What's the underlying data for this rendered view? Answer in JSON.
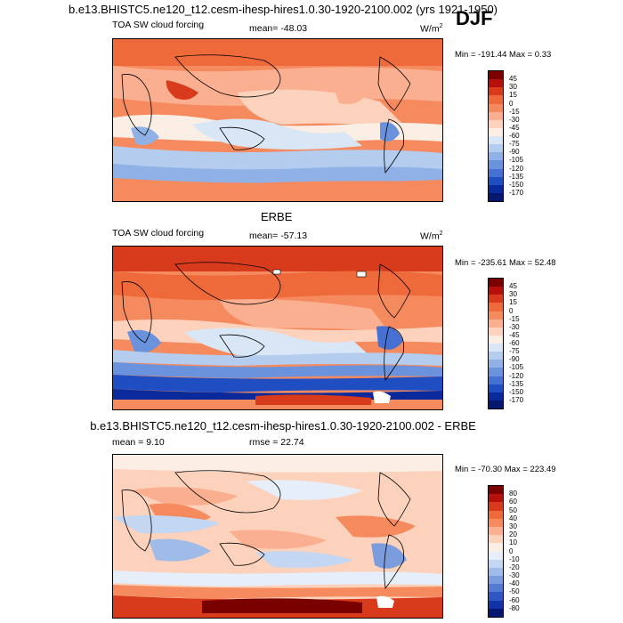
{
  "main_title": "b.e13.BHISTC5.ne120_t12.cesm-ihesp-hires1.0.30-1920-2100.002 (yrs 1921-1950)",
  "season": "DJF",
  "panels": [
    {
      "title": "",
      "left": "TOA SW cloud forcing",
      "center": "mean= -48.03",
      "units": "W/m",
      "units_sup": "2",
      "minmax": "Min = -191.44 Max =  0.33",
      "levels": [
        "45",
        "30",
        "15",
        "0",
        "-15",
        "-30",
        "-45",
        "-60",
        "-75",
        "-90",
        "-105",
        "-120",
        "-135",
        "-150",
        "-170"
      ]
    },
    {
      "title": "ERBE",
      "left": "TOA SW cloud forcing",
      "center": "mean= -57.13",
      "units": "W/m",
      "units_sup": "2",
      "minmax": "Min = -235.61 Max =  52.48",
      "levels": [
        "45",
        "30",
        "15",
        "0",
        "-15",
        "-30",
        "-45",
        "-60",
        "-75",
        "-90",
        "-105",
        "-120",
        "-135",
        "-150",
        "-170"
      ]
    },
    {
      "title": "b.e13.BHISTC5.ne120_t12.cesm-ihesp-hires1.0.30-1920-2100.002 - ERBE",
      "left": "mean =   9.10",
      "center": "rmse =  22.74",
      "units": "",
      "units_sup": "",
      "minmax": "Min = -70.30 Max = 223.49",
      "levels": [
        "80",
        "60",
        "50",
        "40",
        "30",
        "20",
        "10",
        "0",
        "-10",
        "-20",
        "-30",
        "-40",
        "-50",
        "-60",
        "-80"
      ]
    }
  ],
  "colors": {
    "abs_scale": [
      "#7a0000",
      "#b5100c",
      "#d83a1c",
      "#ef6a3a",
      "#f58a5e",
      "#fab090",
      "#fcd2bd",
      "#fbeee4",
      "#d9e6f6",
      "#b4cdef",
      "#8fb1e6",
      "#6b92dc",
      "#4670d2",
      "#1f4dc2",
      "#0a2a9c",
      "#061770"
    ],
    "diff_scale": [
      "#7a0000",
      "#b5100c",
      "#d83a1c",
      "#ef6a3a",
      "#f58a5e",
      "#fab090",
      "#fcd2bd",
      "#fbeee4",
      "#e6eefa",
      "#c3d6f2",
      "#9fbbe8",
      "#7b9cdd",
      "#557ad2",
      "#2e57c4",
      "#1233a8",
      "#061770"
    ]
  }
}
